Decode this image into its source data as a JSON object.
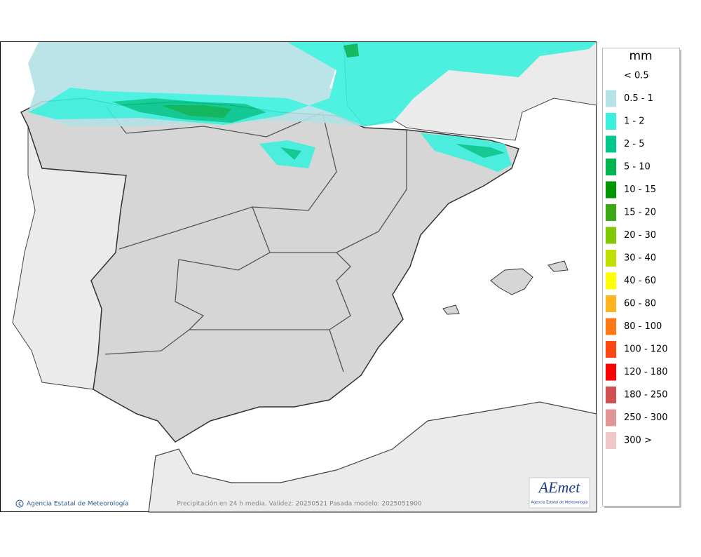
{
  "map": {
    "footer": "Precipitación en 24 h media. Validez: 20250521 Pasada modelo: 2025051900",
    "credit": "Agencia Estatal de Meteorología"
  },
  "logo": {
    "name": "AEmet",
    "subtitle": "Agencia Estatal de Meteorología"
  },
  "legend": {
    "title": "mm",
    "items": [
      {
        "label": "< 0.5",
        "color": "#ffffff"
      },
      {
        "label": "0.5 - 1",
        "color": "#b4e2e6"
      },
      {
        "label": "1 - 2",
        "color": "#3cf0de"
      },
      {
        "label": "2 - 5",
        "color": "#00c88c"
      },
      {
        "label": "5 - 10",
        "color": "#00b450"
      },
      {
        "label": "10 - 15",
        "color": "#009600"
      },
      {
        "label": "15 - 20",
        "color": "#3caa14"
      },
      {
        "label": "20 - 30",
        "color": "#80c800"
      },
      {
        "label": "30 - 40",
        "color": "#c0e000"
      },
      {
        "label": "40 - 60",
        "color": "#ffff00"
      },
      {
        "label": "60 - 80",
        "color": "#ffb41e"
      },
      {
        "label": "80 - 100",
        "color": "#ff7814"
      },
      {
        "label": "100 - 120",
        "color": "#ff4614"
      },
      {
        "label": "120 - 180",
        "color": "#ff0000"
      },
      {
        "label": "180 - 250",
        "color": "#d25050"
      },
      {
        "label": "250 - 300",
        "color": "#e09696"
      },
      {
        "label": "300 >",
        "color": "#f0c8c8"
      }
    ]
  }
}
